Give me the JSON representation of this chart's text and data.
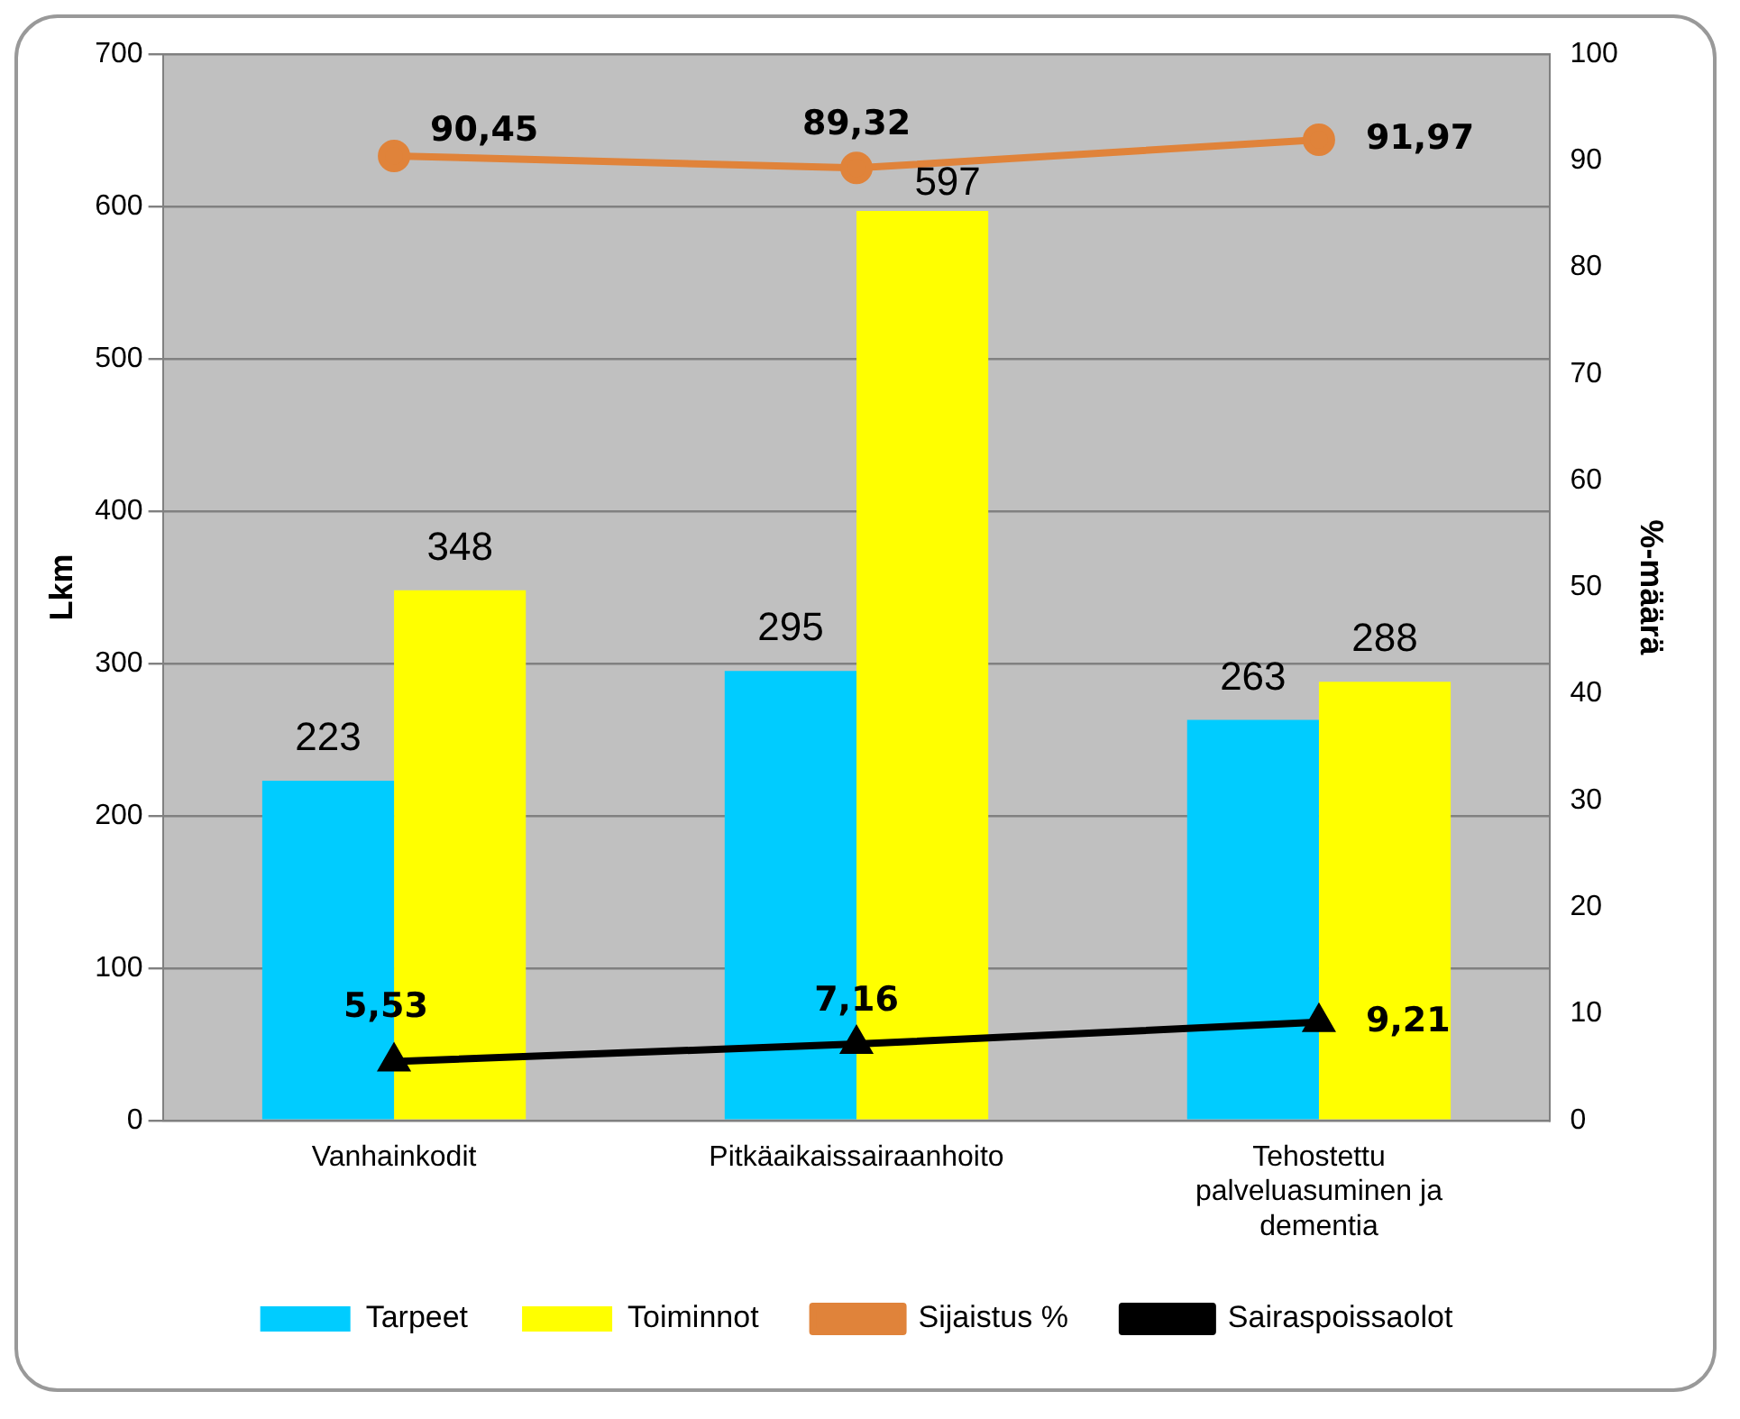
{
  "chart_data": {
    "type": "bar",
    "ylabel": "Lkm",
    "y2label": "%-määrä",
    "categories": [
      "Vanhainkodit",
      "Pitkäaikaissairaanhoito",
      "Tehostettu palveluasuminen ja dementia"
    ],
    "series": [
      {
        "name": "Tarpeet",
        "color": "#00ccff",
        "values": [
          223,
          295,
          263
        ],
        "value_labels": [
          "223",
          "295",
          "263"
        ]
      },
      {
        "name": "Toiminnot",
        "color": "#ffff00",
        "values": [
          348,
          597,
          288
        ],
        "value_labels": [
          "348",
          "597",
          "288"
        ]
      },
      {
        "name": "Sijaistus %",
        "type": "line",
        "axis": "y2",
        "marker": "circle",
        "color": "#e0833a",
        "values": [
          90.45,
          89.32,
          91.97
        ],
        "value_labels": [
          "90,45",
          "89,32",
          "91,97"
        ]
      },
      {
        "name": "Sairaspoissaolot",
        "type": "line",
        "axis": "y2",
        "marker": "triangle",
        "color": "#000000",
        "values": [
          5.53,
          7.16,
          9.21
        ],
        "value_labels": [
          "5,53",
          "7,16",
          "9,21"
        ]
      }
    ],
    "ylim": [
      0,
      700
    ],
    "yticks": [
      0,
      100,
      200,
      300,
      400,
      500,
      600,
      700
    ],
    "y2lim": [
      0,
      100
    ],
    "y2ticks": [
      0,
      10,
      20,
      30,
      40,
      50,
      60,
      70,
      80,
      90,
      100
    ],
    "grid": "y",
    "legend": "bottom"
  }
}
